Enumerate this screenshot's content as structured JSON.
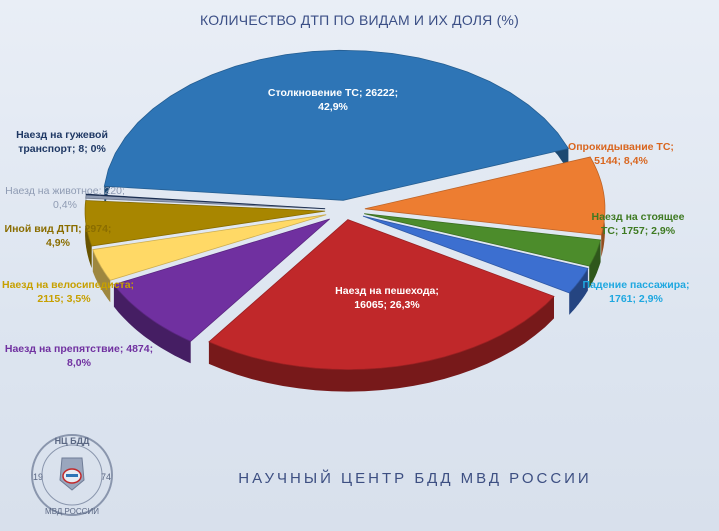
{
  "chart_data": {
    "type": "pie",
    "title": "КОЛИЧЕСТВО ДТП ПО ВИДАМ И ИХ ДОЛЯ (%)",
    "slices": [
      {
        "name": "Столкновение ТС",
        "value": 26222,
        "percent": 42.9,
        "color": "#2e75b6",
        "label_line1": "Столкновение ТС; 26222;",
        "label_line2": "42,9%"
      },
      {
        "name": "Опрокидывание ТС",
        "value": 5144,
        "percent": 8.4,
        "color": "#ed7d31",
        "label_line1": "Опрокидывание ТС;",
        "label_line2": "5144; 8,4%"
      },
      {
        "name": "Наезд на стоящее ТС",
        "value": 1757,
        "percent": 2.9,
        "color": "#4c8c2b",
        "label_line1": "Наезд на стоящее",
        "label_line2": "ТС; 1757; 2,9%"
      },
      {
        "name": "Падение пассажира",
        "value": 1761,
        "percent": 2.9,
        "color": "#3c6fd0",
        "label_line1": "Падение пассажира;",
        "label_line2": "1761; 2,9%"
      },
      {
        "name": "Наезд на пешехода",
        "value": 16065,
        "percent": 26.3,
        "color": "#c0282a",
        "label_line1": "Наезд на пешехода;",
        "label_line2": "16065; 26,3%"
      },
      {
        "name": "Наезд на препятствие",
        "value": 4874,
        "percent": 8.0,
        "color": "#7030a0",
        "label_line1": "Наезд на препятствие; 4874;",
        "label_line2": "8,0%"
      },
      {
        "name": "Наезд на велосипедиста",
        "value": 2115,
        "percent": 3.5,
        "color": "#ffd966",
        "label_line1": "Наезд на велосипедиста;",
        "label_line2": "2115; 3,5%"
      },
      {
        "name": "Иной вид ДТП",
        "value": 2974,
        "percent": 4.9,
        "color": "#a88600",
        "label_line1": "Иной вид ДТП; 2974;",
        "label_line2": "4,9%"
      },
      {
        "name": "Наезд на животное",
        "value": 220,
        "percent": 0.4,
        "color": "#8f9bb3",
        "label_line1": "Наезд на животное; 220;",
        "label_line2": "0,4%"
      },
      {
        "name": "Наезд на гужевой транспорт",
        "value": 8,
        "percent": 0.0,
        "color": "#203864",
        "label_line1": "Наезд на гужевой",
        "label_line2": "транспорт; 8; 0%"
      }
    ]
  },
  "labels_colors": {
    "Столкновение ТС": "#ffffff",
    "Опрокидывание ТС": "#d9661f",
    "Наезд на стоящее ТС": "#3e7a22",
    "Падение пассажира": "#1fa8e0",
    "Наезд на пешехода": "#ffffff",
    "Наезд на препятствие": "#7030a0",
    "Наезд на велосипедиста": "#c7a000",
    "Иной вид ДТП": "#8a6d00",
    "Наезд на животное": "#8f9bb3",
    "Наезд на гужевой транспорт": "#1f3864"
  },
  "footer": "НАУЧНЫЙ ЦЕНТР БДД МВД РОССИИ",
  "logo": {
    "top": "НЦ БДД",
    "left": "19",
    "right": "74",
    "bottom": "МВД РОССИИ"
  }
}
